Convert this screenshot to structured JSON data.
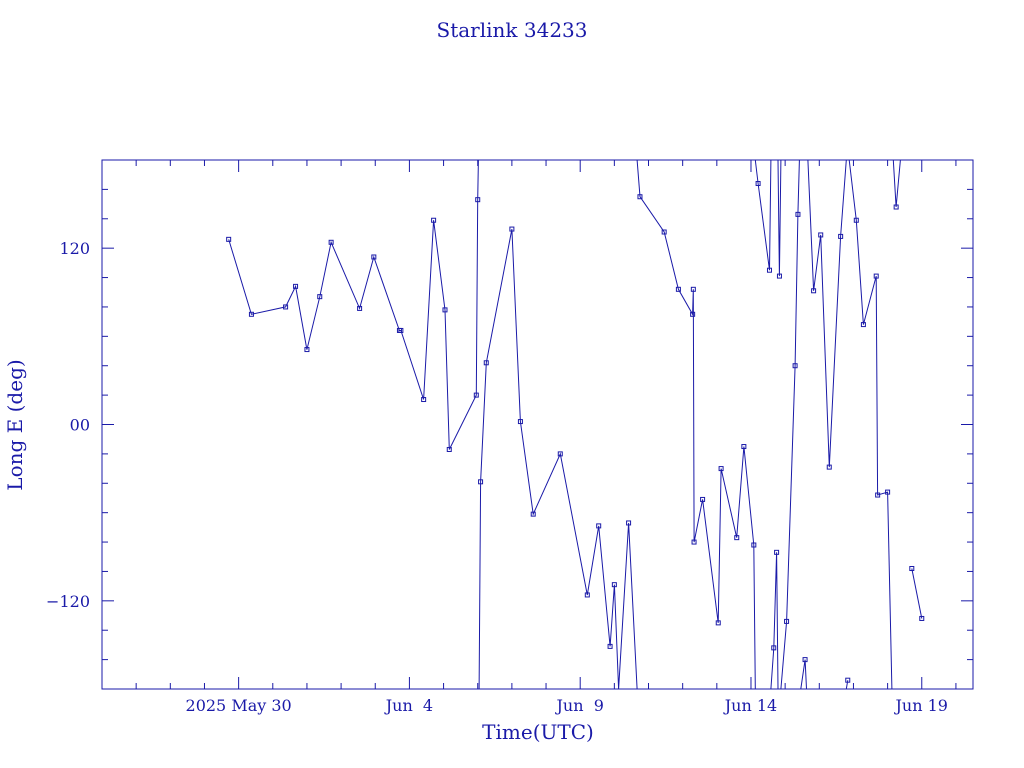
{
  "chart_data": {
    "type": "line",
    "title": "Starlink 34233",
    "xlabel": "Time(UTC)",
    "ylabel": "Long E (deg)",
    "color": "#1a1aa8",
    "background": "#ffffff",
    "xlim": [
      "2025-05-26",
      "2025-06-20T12:00"
    ],
    "ylim": [
      -180,
      180
    ],
    "yticks": [
      -120,
      0,
      120
    ],
    "ytick_labels": [
      "−120",
      "00",
      "120"
    ],
    "xticks": [
      {
        "date": "2025-05-30",
        "label": "2025 May 30"
      },
      {
        "date": "2025-06-04",
        "label": "Jun  4"
      },
      {
        "date": "2025-06-09",
        "label": "Jun  9"
      },
      {
        "date": "2025-06-14",
        "label": "Jun 14"
      },
      {
        "date": "2025-06-19",
        "label": "Jun 19"
      }
    ],
    "grid": false,
    "marker": "square",
    "series": [
      {
        "segments": [
          [
            {
              "x": "2025-05-29T17:00",
              "y": 126
            },
            {
              "x": "2025-05-30T09:00",
              "y": 75
            },
            {
              "x": "2025-05-31T09:00",
              "y": 80
            },
            {
              "x": "2025-05-31T16:00",
              "y": 94
            },
            {
              "x": "2025-06-01T00:00",
              "y": 51
            },
            {
              "x": "2025-06-01T09:00",
              "y": 87
            },
            {
              "x": "2025-06-01T17:00",
              "y": 124
            },
            {
              "x": "2025-06-02T13:00",
              "y": 79
            },
            {
              "x": "2025-06-02T23:00",
              "y": 114
            },
            {
              "x": "2025-06-03T17:00",
              "y": 64
            },
            {
              "x": "2025-06-03T18:00",
              "y": 64
            },
            {
              "x": "2025-06-04T10:00",
              "y": 17
            },
            {
              "x": "2025-06-04T17:00",
              "y": 139
            },
            {
              "x": "2025-06-05T01:00",
              "y": 78
            },
            {
              "x": "2025-06-05T04:00",
              "y": -17
            },
            {
              "x": "2025-06-05T23:00",
              "y": 20
            },
            {
              "x": "2025-06-06T00:00",
              "y": 153
            },
            {
              "x": "2025-06-06T00:30",
              "y": 180
            }
          ],
          [
            {
              "x": "2025-06-06T01:00",
              "y": -180
            },
            {
              "x": "2025-06-06T02:00",
              "y": -39
            },
            {
              "x": "2025-06-06T06:00",
              "y": 42
            },
            {
              "x": "2025-06-07T00:00",
              "y": 133
            },
            {
              "x": "2025-06-07T06:00",
              "y": 2
            },
            {
              "x": "2025-06-07T15:00",
              "y": -61
            },
            {
              "x": "2025-06-08T10:00",
              "y": -20
            },
            {
              "x": "2025-06-09T05:00",
              "y": -116
            },
            {
              "x": "2025-06-09T13:00",
              "y": -69
            },
            {
              "x": "2025-06-09T21:00",
              "y": -151
            },
            {
              "x": "2025-06-10T00:00",
              "y": -109
            },
            {
              "x": "2025-06-10T03:00",
              "y": -180
            },
            {
              "x": "2025-06-10T10:00",
              "y": -67
            },
            {
              "x": "2025-06-10T16:00",
              "y": -180
            }
          ],
          [
            {
              "x": "2025-06-10T16:00",
              "y": 180
            },
            {
              "x": "2025-06-10T18:00",
              "y": 155
            },
            {
              "x": "2025-06-11T11:00",
              "y": 131
            },
            {
              "x": "2025-06-11T21:00",
              "y": 92
            },
            {
              "x": "2025-06-12T07:00",
              "y": 75
            },
            {
              "x": "2025-06-12T07:30",
              "y": 92
            },
            {
              "x": "2025-06-12T08:00",
              "y": -80
            },
            {
              "x": "2025-06-12T14:00",
              "y": -51
            },
            {
              "x": "2025-06-13T01:00",
              "y": -135
            },
            {
              "x": "2025-06-13T03:00",
              "y": -30
            },
            {
              "x": "2025-06-13T14:00",
              "y": -77
            },
            {
              "x": "2025-06-13T19:00",
              "y": -15
            },
            {
              "x": "2025-06-14T02:00",
              "y": -82
            },
            {
              "x": "2025-06-14T03:00",
              "y": -180
            }
          ],
          [
            {
              "x": "2025-06-14T03:00",
              "y": 180
            },
            {
              "x": "2025-06-14T05:00",
              "y": 164
            },
            {
              "x": "2025-06-14T13:00",
              "y": 105
            },
            {
              "x": "2025-06-14T14:00",
              "y": 180
            }
          ],
          [
            {
              "x": "2025-06-14T14:00",
              "y": -180
            },
            {
              "x": "2025-06-14T16:00",
              "y": -152
            },
            {
              "x": "2025-06-14T18:00",
              "y": -87
            },
            {
              "x": "2025-06-14T19:00",
              "y": -180
            }
          ],
          [
            {
              "x": "2025-06-14T19:00",
              "y": 180
            },
            {
              "x": "2025-06-14T20:00",
              "y": 101
            },
            {
              "x": "2025-06-14T21:00",
              "y": 180
            }
          ],
          [
            {
              "x": "2025-06-14T21:00",
              "y": -180
            },
            {
              "x": "2025-06-15T01:00",
              "y": -134
            },
            {
              "x": "2025-06-15T07:00",
              "y": 40
            },
            {
              "x": "2025-06-15T09:00",
              "y": 143
            },
            {
              "x": "2025-06-15T10:00",
              "y": 180
            }
          ],
          [
            {
              "x": "2025-06-15T11:00",
              "y": -180
            },
            {
              "x": "2025-06-15T14:00",
              "y": -160
            },
            {
              "x": "2025-06-15T15:00",
              "y": -180
            }
          ],
          [
            {
              "x": "2025-06-15T16:00",
              "y": 180
            },
            {
              "x": "2025-06-15T20:00",
              "y": 91
            },
            {
              "x": "2025-06-16T01:00",
              "y": 129
            },
            {
              "x": "2025-06-16T07:00",
              "y": -29
            },
            {
              "x": "2025-06-16T15:00",
              "y": 128
            },
            {
              "x": "2025-06-16T19:00",
              "y": 180
            }
          ],
          [
            {
              "x": "2025-06-16T19:00",
              "y": -180
            },
            {
              "x": "2025-06-16T20:00",
              "y": -174
            }
          ],
          [
            {
              "x": "2025-06-16T21:00",
              "y": 180
            },
            {
              "x": "2025-06-17T02:00",
              "y": 139
            },
            {
              "x": "2025-06-17T07:00",
              "y": 68
            },
            {
              "x": "2025-06-17T16:00",
              "y": 101
            },
            {
              "x": "2025-06-17T17:00",
              "y": -48
            },
            {
              "x": "2025-06-18T00:00",
              "y": -46
            },
            {
              "x": "2025-06-18T03:00",
              "y": -180
            }
          ],
          [
            {
              "x": "2025-06-18T04:00",
              "y": 180
            },
            {
              "x": "2025-06-18T06:00",
              "y": 148
            },
            {
              "x": "2025-06-18T09:00",
              "y": 180
            }
          ],
          [
            {
              "x": "2025-06-18T17:00",
              "y": -98
            },
            {
              "x": "2025-06-19T00:00",
              "y": -132
            }
          ]
        ]
      }
    ]
  }
}
